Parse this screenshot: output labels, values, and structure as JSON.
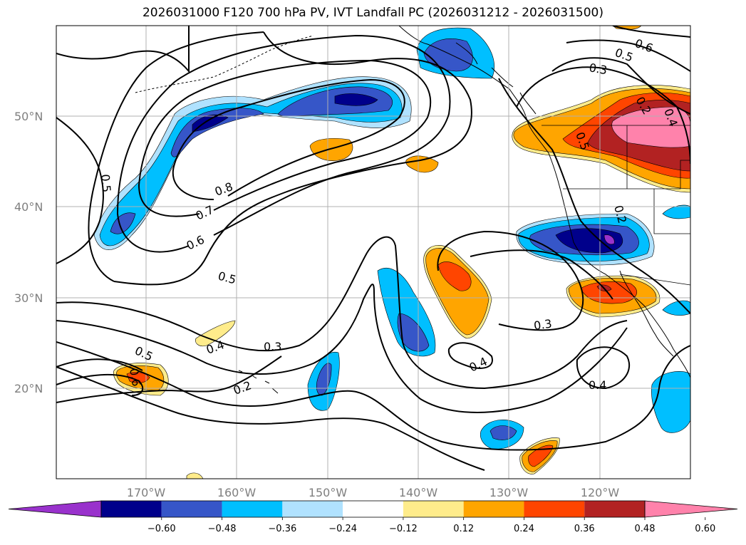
{
  "title": "2026031000 F120 700 hPa PV, IVT Landfall PC (2026031212 - 2026031500)",
  "lat_labels": [
    "50°N",
    "40°N",
    "30°N",
    "20°N"
  ],
  "lon_labels": [
    "170°W",
    "160°W",
    "150°W",
    "140°W",
    "130°W",
    "120°W"
  ],
  "contour_labels": [
    "0.5",
    "0.8",
    "0.7",
    "0.6",
    "0.5",
    "0.5",
    "0.4",
    "0.3",
    "0.2",
    "0.6",
    "0.4",
    "0.3",
    "0.4",
    "0.6",
    "0.5",
    "0.3",
    "0.2",
    "0.2",
    "0.4",
    "0.5"
  ],
  "colorbar": {
    "ticks": [
      "−0.60",
      "−0.48",
      "−0.36",
      "−0.24",
      "−0.12",
      "0.12",
      "0.24",
      "0.36",
      "0.48",
      "0.60"
    ],
    "colors": [
      "#9932cc",
      "#00008b",
      "#3656c8",
      "#00bfff",
      "#b0e2ff",
      "#ffffff",
      "#ffec8b",
      "#ffa500",
      "#ff4500",
      "#b22222",
      "#ff82ab"
    ]
  },
  "chart_data": {
    "type": "map",
    "title": "2026031000 F120 700 hPa PV, IVT Landfall PC (2026031212 - 2026031500)",
    "lon_range": [
      -180,
      -110
    ],
    "lat_range": [
      10,
      60
    ],
    "grid": true,
    "colorbar_levels": [
      -0.6,
      -0.48,
      -0.36,
      -0.24,
      -0.12,
      0.12,
      0.24,
      0.36,
      0.48,
      0.6
    ],
    "colorbar_extend": "both",
    "contour_levels": [
      0.2,
      0.3,
      0.4,
      0.5,
      0.6,
      0.7,
      0.8
    ]
  }
}
